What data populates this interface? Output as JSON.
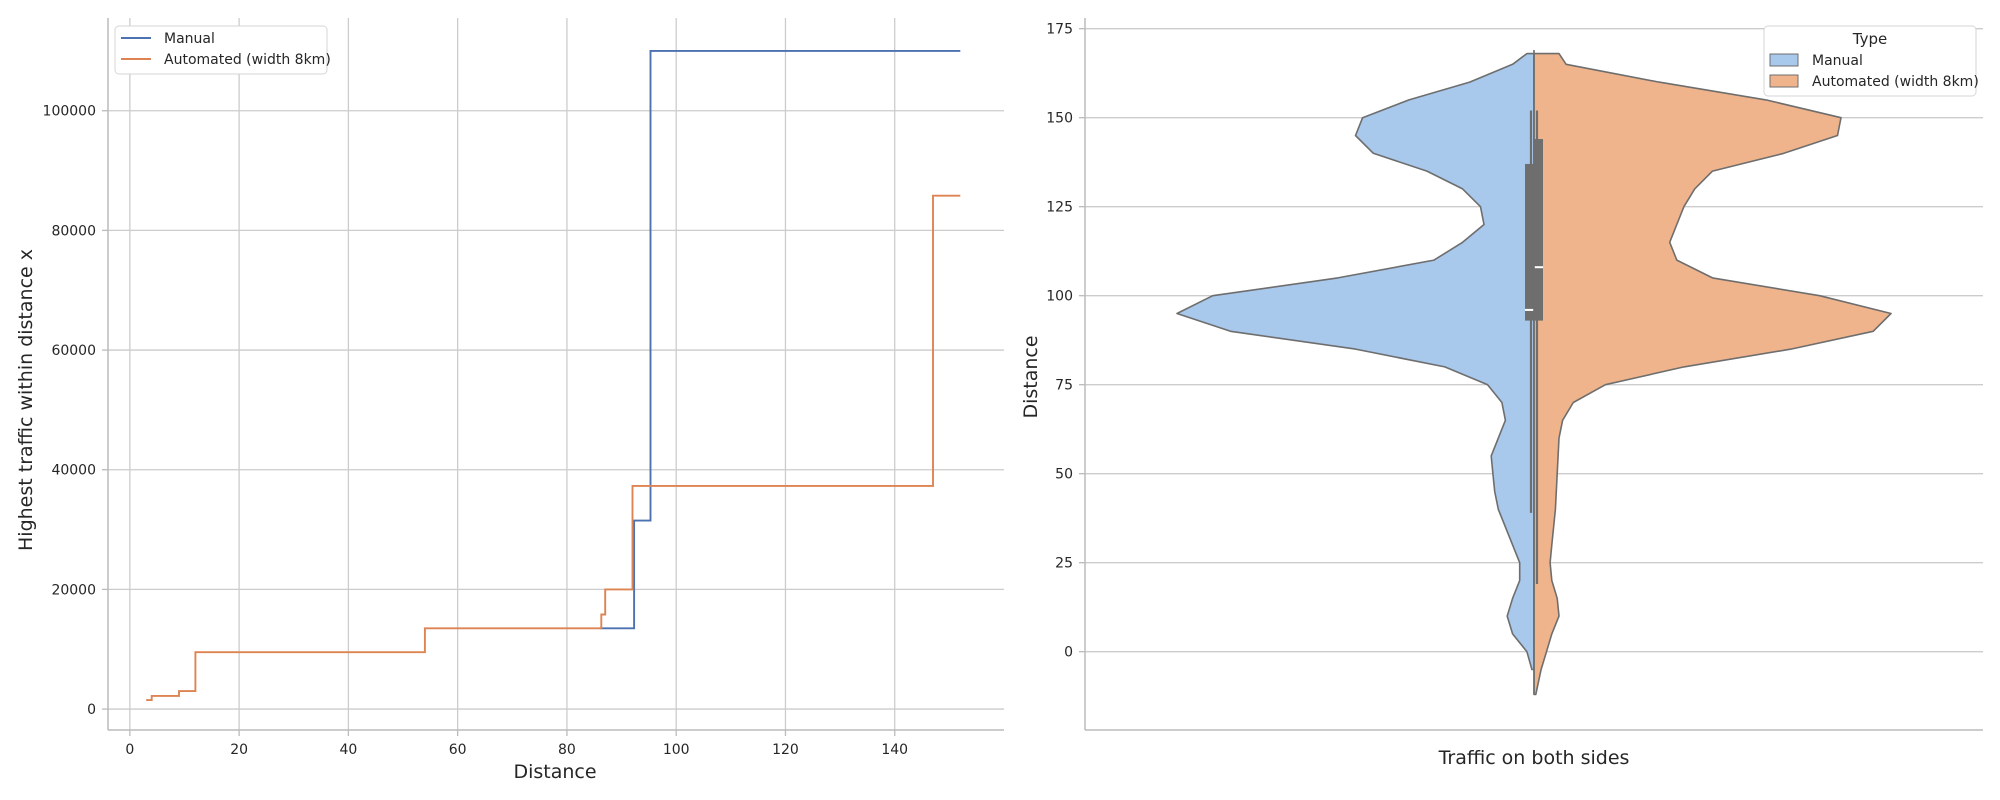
{
  "chart_data": [
    {
      "type": "line",
      "step": "post",
      "title": "",
      "xlabel": "Distance",
      "ylabel": "Highest traffic within distance x",
      "xlim": [
        -4,
        160
      ],
      "ylim": [
        -3500,
        115500
      ],
      "xticks": [
        "0",
        "20",
        "40",
        "60",
        "80",
        "100",
        "120",
        "140"
      ],
      "yticks": [
        "0",
        "20000",
        "40000",
        "60000",
        "80000",
        "100000"
      ],
      "grid": true,
      "legend_position": "top-left",
      "series": [
        {
          "name": "Manual",
          "color": "#4c72b0",
          "x": [
            86,
            92.3,
            92.3,
            95.3,
            95.3,
            152
          ],
          "y": [
            13500,
            13500,
            31500,
            31500,
            110000,
            110000
          ]
        },
        {
          "name": "Automated (width 8km)",
          "color": "#dd8452",
          "x": [
            3,
            4,
            4,
            9,
            9,
            12,
            12,
            54,
            54,
            86.3,
            86.3,
            87,
            87,
            92,
            92,
            147,
            147,
            152
          ],
          "y": [
            1500,
            1500,
            2200,
            2200,
            3000,
            3000,
            9500,
            9500,
            13500,
            13500,
            15800,
            15800,
            20000,
            20000,
            37300,
            37300,
            85800,
            85800
          ]
        }
      ]
    },
    {
      "type": "violin",
      "split": true,
      "title": "",
      "xlabel": "Traffic on both sides",
      "ylabel": "Distance",
      "ylim": [
        -22,
        178
      ],
      "yticks": [
        "0",
        "25",
        "50",
        "75",
        "100",
        "125",
        "150",
        "175"
      ],
      "grid": true,
      "legend_title": "Type",
      "legend_position": "top-right",
      "series": [
        {
          "name": "Manual",
          "fill": "#a8c8ec",
          "side": "left",
          "density": [
            [
              -5,
              0.006
            ],
            [
              0,
              0.02
            ],
            [
              5,
              0.06
            ],
            [
              10,
              0.075
            ],
            [
              15,
              0.06
            ],
            [
              20,
              0.04
            ],
            [
              25,
              0.04
            ],
            [
              30,
              0.06
            ],
            [
              40,
              0.1
            ],
            [
              45,
              0.11
            ],
            [
              50,
              0.115
            ],
            [
              55,
              0.12
            ],
            [
              60,
              0.1
            ],
            [
              65,
              0.08
            ],
            [
              70,
              0.09
            ],
            [
              75,
              0.13
            ],
            [
              80,
              0.25
            ],
            [
              85,
              0.5
            ],
            [
              90,
              0.85
            ],
            [
              95,
              1.0
            ],
            [
              100,
              0.9
            ],
            [
              105,
              0.55
            ],
            [
              110,
              0.28
            ],
            [
              115,
              0.2
            ],
            [
              120,
              0.14
            ],
            [
              125,
              0.15
            ],
            [
              130,
              0.2
            ],
            [
              135,
              0.3
            ],
            [
              140,
              0.45
            ],
            [
              145,
              0.5
            ],
            [
              150,
              0.48
            ],
            [
              155,
              0.35
            ],
            [
              160,
              0.18
            ],
            [
              165,
              0.06
            ],
            [
              168,
              0.02
            ]
          ],
          "box": {
            "q1": 93,
            "median": 96,
            "q3": 137,
            "whisker_low": 39,
            "whisker_high": 152
          }
        },
        {
          "name": "Automated (width 8km)",
          "fill": "#f0b48c",
          "side": "right",
          "density": [
            [
              -12,
              0.005
            ],
            [
              -5,
              0.02
            ],
            [
              0,
              0.035
            ],
            [
              5,
              0.05
            ],
            [
              10,
              0.07
            ],
            [
              15,
              0.065
            ],
            [
              20,
              0.05
            ],
            [
              25,
              0.045
            ],
            [
              30,
              0.05
            ],
            [
              40,
              0.06
            ],
            [
              50,
              0.065
            ],
            [
              60,
              0.07
            ],
            [
              65,
              0.08
            ],
            [
              70,
              0.11
            ],
            [
              75,
              0.2
            ],
            [
              80,
              0.42
            ],
            [
              85,
              0.72
            ],
            [
              90,
              0.95
            ],
            [
              95,
              1.0
            ],
            [
              100,
              0.8
            ],
            [
              105,
              0.5
            ],
            [
              110,
              0.4
            ],
            [
              115,
              0.38
            ],
            [
              120,
              0.4
            ],
            [
              125,
              0.42
            ],
            [
              130,
              0.45
            ],
            [
              135,
              0.5
            ],
            [
              140,
              0.7
            ],
            [
              145,
              0.85
            ],
            [
              150,
              0.86
            ],
            [
              155,
              0.65
            ],
            [
              160,
              0.35
            ],
            [
              165,
              0.09
            ],
            [
              168,
              0.07
            ]
          ],
          "box": {
            "q1": 93,
            "median": 108,
            "q3": 144,
            "whisker_low": 19,
            "whisker_high": 152
          }
        }
      ]
    }
  ]
}
